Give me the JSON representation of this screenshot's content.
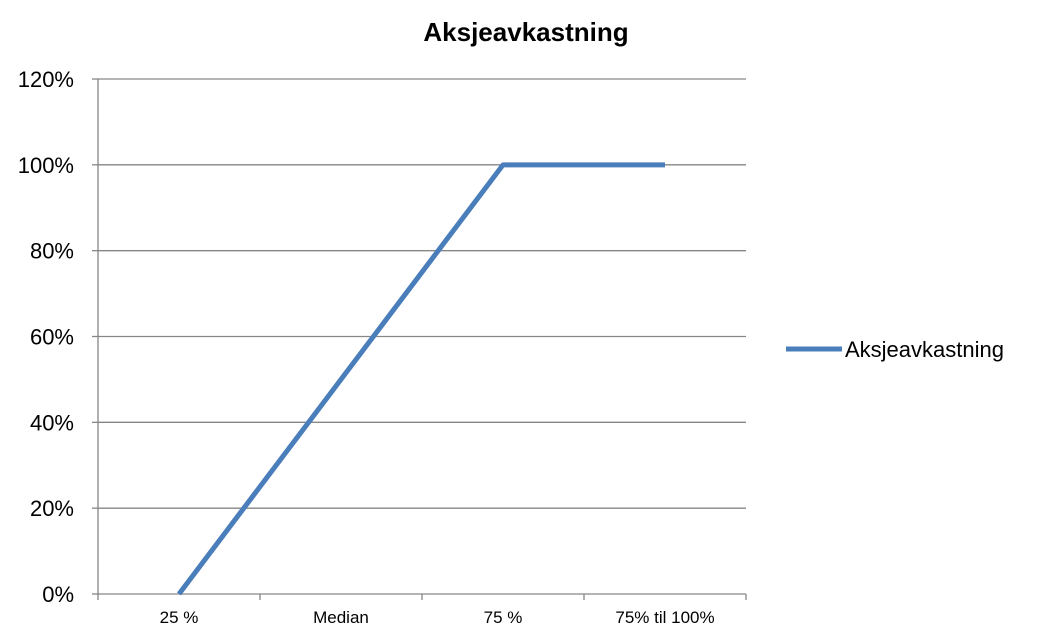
{
  "chart_data": {
    "type": "line",
    "title": "Aksjeavkastning",
    "categories": [
      "25 %",
      "Median",
      "75 %",
      "75% til 100%"
    ],
    "series": [
      {
        "name": "Aksjeavkastning",
        "values": [
          0,
          50,
          100,
          100
        ]
      }
    ],
    "ylim": [
      0,
      120
    ],
    "yticks": [
      0,
      20,
      40,
      60,
      80,
      100,
      120
    ],
    "ytick_suffix": "%",
    "grid": true,
    "legend": "right",
    "colors": {
      "series": "#4a7ebb",
      "grid": "#868686",
      "axis": "#868686"
    }
  }
}
